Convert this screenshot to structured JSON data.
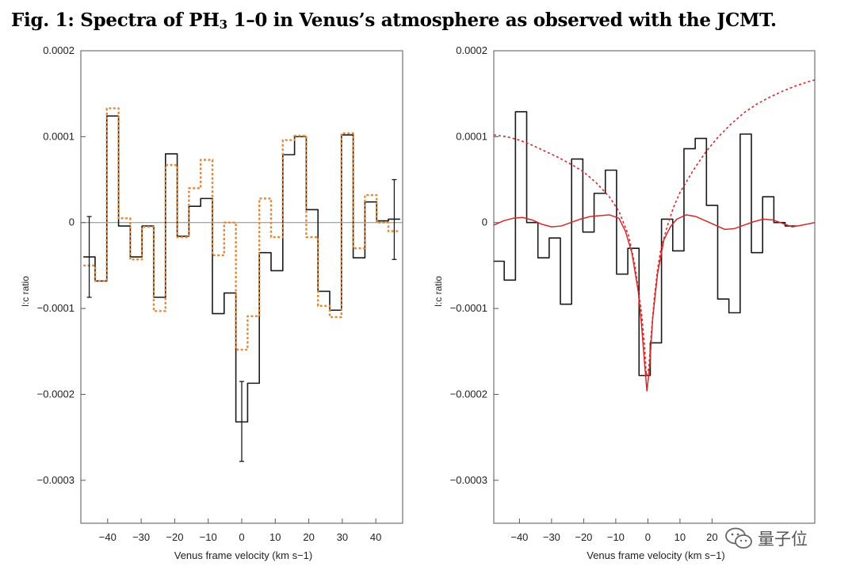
{
  "figure": {
    "label": "Fig. 1:",
    "title_before": "Spectra of PH",
    "title_sub": "3",
    "title_after": " 1–0 in Venus’s atmosphere as observed with the JCMT."
  },
  "watermark": {
    "text": "量子位",
    "icon": "wechat-icon"
  },
  "chart_data": [
    {
      "type": "line",
      "panel": "left",
      "title": "",
      "xlabel": "Venus frame velocity (km s−1)",
      "ylabel": "l:c ratio",
      "xlim": [
        -48,
        48
      ],
      "ylim": [
        -0.00035,
        0.0002
      ],
      "xticks": [
        -40,
        -30,
        -20,
        -10,
        0,
        10,
        20,
        30,
        40
      ],
      "xtick_labels": [
        "−40",
        "−30",
        "−20",
        "−10",
        "0",
        "10",
        "20",
        "30",
        "40"
      ],
      "yticks": [
        0.0002,
        0.0001,
        0,
        -0.0001,
        -0.0002,
        -0.0003
      ],
      "ytick_labels": [
        "0.0002",
        "0.0001",
        "0",
        "−0.0001",
        "−0.0002",
        "−0.0003"
      ],
      "zero_line": true,
      "bin_width": 3.5,
      "series": [
        {
          "name": "observed spectrum",
          "style": "step",
          "color": "#1a1a1a",
          "x": [
            -45.5,
            -42,
            -38.5,
            -35,
            -31.5,
            -28,
            -24.5,
            -21,
            -17.5,
            -14,
            -10.5,
            -7,
            -3.5,
            0,
            3.5,
            7,
            10.5,
            14,
            17.5,
            21,
            24.5,
            28,
            31.5,
            35,
            38.5,
            42,
            45.5
          ],
          "values": [
            -4e-05,
            -6.8e-05,
            0.000124,
            -4e-06,
            -4e-05,
            -4e-06,
            -8.7e-05,
            8e-05,
            -1.6e-05,
            1.9e-05,
            2.8e-05,
            -0.000106,
            -8.2e-05,
            -0.000232,
            -0.000187,
            -3.5e-05,
            -5.6e-05,
            7.9e-05,
            0.0001,
            1.5e-05,
            -8e-05,
            -0.000102,
            0.000102,
            -4.1e-05,
            2.4e-05,
            2e-06,
            4e-06
          ]
        },
        {
          "name": "alternative spectrum",
          "style": "step-dotted",
          "color": "#e08a3c",
          "x": [
            -45.5,
            -42,
            -38.5,
            -35,
            -31.5,
            -28,
            -24.5,
            -21,
            -17.5,
            -14,
            -10.5,
            -7,
            -3.5,
            0,
            3.5,
            7,
            10.5,
            14,
            17.5,
            21,
            24.5,
            28,
            31.5,
            35,
            38.5,
            42,
            45.5
          ],
          "values": [
            -5e-05,
            -6.8e-05,
            0.000133,
            5e-06,
            -4.3e-05,
            -5e-06,
            -0.000103,
            6.7e-05,
            -1.7e-05,
            4e-05,
            7.3e-05,
            -3.8e-05,
            0,
            -0.000148,
            -0.000109,
            2.8e-05,
            -1.7e-05,
            9.6e-05,
            0.000101,
            -1.7e-05,
            -9.7e-05,
            -0.00011,
            0.000104,
            -3e-05,
            3.2e-05,
            0,
            -1e-05
          ]
        }
      ],
      "error_bars": [
        {
          "x": -45.5,
          "value": -4e-05,
          "low": -8.7e-05,
          "high": 7e-06
        },
        {
          "x": 0,
          "value": -0.000232,
          "low": -0.000278,
          "high": -0.000185
        },
        {
          "x": 45.5,
          "value": 4e-06,
          "low": -4.3e-05,
          "high": 5e-05
        }
      ]
    },
    {
      "type": "line",
      "panel": "right",
      "title": "",
      "xlabel": "Venus frame velocity (km s−1)",
      "ylabel": "l:c ratio",
      "xlim": [
        -48,
        52
      ],
      "ylim": [
        -0.00035,
        0.0002
      ],
      "xticks": [
        -40,
        -30,
        -20,
        -10,
        0,
        10,
        20
      ],
      "xtick_labels": [
        "−40",
        "−30",
        "−20",
        "−10",
        "0",
        "10",
        "20"
      ],
      "yticks": [
        0.0002,
        0.0001,
        0,
        -0.0001,
        -0.0002,
        -0.0003
      ],
      "ytick_labels": [
        "0.0002",
        "0.0001",
        "0",
        "−0.0001",
        "−0.0002",
        "−0.0003"
      ],
      "zero_line": false,
      "bin_width": 3.5,
      "series": [
        {
          "name": "observed spectrum",
          "style": "step",
          "color": "#1a1a1a",
          "x": [
            -46.5,
            -43,
            -39.5,
            -36,
            -32.5,
            -29,
            -25.5,
            -22,
            -18.5,
            -15,
            -11.5,
            -8,
            -4.5,
            -1,
            2.5,
            6,
            9.5,
            13,
            16.5,
            20,
            23.5,
            27,
            30.5,
            34,
            37.5,
            41,
            44.5
          ],
          "values": [
            -4.5e-05,
            -6.7e-05,
            0.000129,
            0,
            -4.1e-05,
            -1.8e-05,
            -9.5e-05,
            7.4e-05,
            -1.1e-05,
            3.4e-05,
            6.1e-05,
            -6e-05,
            -3e-05,
            -0.000178,
            -0.00014,
            4e-06,
            -3.3e-05,
            8.6e-05,
            9.8e-05,
            2e-05,
            -8.9e-05,
            -0.000105,
            0.000103,
            -3.5e-05,
            3e-05,
            0,
            -4e-06
          ]
        },
        {
          "name": "fitted line profile",
          "style": "line",
          "color": "#d62828",
          "x": [
            -48,
            -45,
            -42,
            -39,
            -36,
            -33,
            -30,
            -27,
            -24,
            -21,
            -18,
            -15,
            -12,
            -9,
            -7,
            -5,
            -3,
            -2,
            -1,
            -0.3,
            0.5,
            1.5,
            3,
            5,
            7,
            9,
            12,
            15,
            18,
            21,
            24,
            27,
            30,
            33,
            36,
            39,
            42,
            45,
            48,
            52
          ],
          "values": [
            -3e-06,
            2e-06,
            5e-06,
            6e-06,
            3e-06,
            -2e-06,
            -5e-06,
            -4e-06,
            0,
            4e-06,
            7e-06,
            8e-06,
            9e-06,
            5e-06,
            -1e-05,
            -3.5e-05,
            -8e-05,
            -0.000118,
            -0.000165,
            -0.000196,
            -0.00017,
            -0.000112,
            -6e-05,
            -2e-05,
            -5e-06,
            4e-06,
            9e-06,
            7e-06,
            2e-06,
            -3e-06,
            -8e-06,
            -7e-06,
            -3e-06,
            1e-06,
            4e-06,
            3e-06,
            -1e-06,
            -5e-06,
            -3e-06,
            0
          ]
        },
        {
          "name": "broad absorption profile",
          "style": "dotted",
          "color": "#d62828",
          "x": [
            -48,
            -44,
            -40,
            -36,
            -32,
            -28,
            -24,
            -20,
            -16,
            -12,
            -9,
            -6,
            -4,
            -2,
            -1,
            -0.5,
            0.3,
            1,
            2,
            3,
            4,
            6,
            8,
            10,
            14,
            18,
            22,
            26,
            30,
            34,
            38,
            42,
            46,
            50,
            52
          ],
          "values": [
            0.000102,
            0.0001,
            9.6e-05,
            9e-05,
            8.3e-05,
            7.6e-05,
            6.8e-05,
            5.9e-05,
            4.6e-05,
            3e-05,
            1.3e-05,
            -1.5e-05,
            -5e-05,
            -0.000105,
            -0.000145,
            -0.000178,
            -0.00017,
            -0.000132,
            -8.8e-05,
            -5.5e-05,
            -3.2e-05,
            -5e-06,
            1.8e-05,
            3.5e-05,
            6e-05,
            8.2e-05,
            0.0001,
            0.000115,
            0.000128,
            0.000138,
            0.000146,
            0.000153,
            0.000159,
            0.000164,
            0.000166
          ]
        }
      ]
    }
  ]
}
